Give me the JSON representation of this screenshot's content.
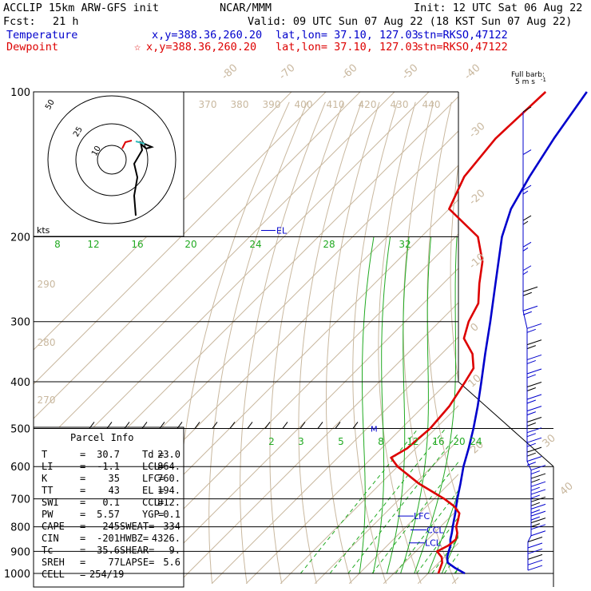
{
  "header": {
    "model": "ACCLIP 15km ARW-GFS init",
    "org": "NCAR/MMM",
    "init": "Init: 12 UTC Sat 06 Aug 22",
    "fcst_label": "Fcst:",
    "fcst_value": "21 h",
    "valid": "Valid: 09 UTC Sun 07 Aug 22 (18 KST Sun 07 Aug 22)"
  },
  "legend": {
    "temperature": {
      "label": "Temperature",
      "xy": "x,y=388.36,260.20",
      "latlon": "lat,lon= 37.10, 127.03",
      "stn": "stn=RKSO,47122",
      "color": "#0000cc"
    },
    "dewpoint": {
      "label": "Dewpoint",
      "marker": "☆",
      "xy": "x,y=388.36,260.20",
      "latlon": "lat,lon= 37.10, 127.03",
      "stn": "stn=RKSO,47122",
      "color": "#dd0000"
    }
  },
  "barb_key": {
    "line1": "Full barb:",
    "line2": "5 m s",
    "unit_sup": "-1"
  },
  "hodograph": {
    "unit": "kts",
    "ring_labels": [
      "10",
      "25",
      "50"
    ]
  },
  "parcel": {
    "title": "Parcel Info",
    "rows": [
      [
        "T",
        "=",
        "30.7",
        "Td",
        "=",
        "23.0"
      ],
      [
        "LI",
        "=",
        "-1.1",
        "LCL",
        "=",
        "864."
      ],
      [
        "K",
        "=",
        "35",
        "LFC",
        "=",
        "760."
      ],
      [
        "TT",
        "=",
        "43",
        "EL",
        "=",
        "194."
      ],
      [
        "SWI",
        "=",
        "0.1",
        "CCL",
        "=",
        "812."
      ],
      [
        "PW",
        "=",
        "5.57",
        "YGP",
        "=",
        "0.1"
      ],
      [
        "CAPE",
        "=",
        "245",
        "SWEAT=",
        "",
        "334"
      ],
      [
        "CIN",
        "=",
        "-201",
        "HWBZ=",
        "",
        "4326."
      ],
      [
        "Tc",
        "=",
        "35.6",
        "SHEAR=",
        "",
        "9."
      ],
      [
        "SREH",
        "=",
        "77",
        "LAPSE=",
        "",
        "5.6"
      ],
      [
        "CELL",
        "=",
        "254/19",
        "",
        "",
        ""
      ]
    ]
  },
  "chart_data": {
    "type": "line",
    "subtype": "skew-T log-p sounding",
    "pressure_levels": [
      100,
      200,
      300,
      400,
      500,
      600,
      700,
      800,
      900,
      1000
    ],
    "isotherm_labels": [
      "-80",
      "-70",
      "-60",
      "-50",
      "-40",
      "-30",
      "-20",
      "-10",
      "0",
      "10",
      "20",
      "30",
      "40"
    ],
    "theta_labels_top": [
      "370",
      "380",
      "390",
      "400",
      "410",
      "420",
      "430",
      "440"
    ],
    "theta_labels_left": [
      "290",
      "280",
      "270"
    ],
    "mixing_ratio_upper": [
      "8",
      "12",
      "16",
      "20",
      "24",
      "28",
      "32"
    ],
    "mixing_ratio_lower": [
      "2",
      "3",
      "5",
      "8",
      "12",
      "16",
      "20",
      "24"
    ],
    "levels_marked": {
      "el": "EL",
      "lfc": "LFC",
      "ccl": "CCL",
      "lcl": "LCL",
      "mark": "M"
    },
    "series": [
      {
        "name": "Temperature",
        "color": "#0000cc",
        "p": [
          1000,
          975,
          950,
          925,
          900,
          875,
          850,
          825,
          800,
          775,
          750,
          725,
          700,
          650,
          600,
          550,
          500,
          450,
          400,
          350,
          300,
          250,
          200,
          175,
          150,
          125,
          100
        ],
        "t": [
          30.7,
          26.4,
          22.6,
          20.8,
          19.6,
          18.4,
          16.6,
          15.2,
          13.6,
          12.0,
          10.4,
          8.6,
          6.8,
          3.2,
          -0.8,
          -4.6,
          -9.0,
          -14.2,
          -20.3,
          -27.3,
          -35.2,
          -44.8,
          -56.5,
          -62.0,
          -66.0,
          -70.0,
          -74.0
        ]
      },
      {
        "name": "Dewpoint",
        "color": "#dd0000",
        "p": [
          1000,
          975,
          950,
          925,
          900,
          875,
          850,
          825,
          800,
          775,
          750,
          725,
          700,
          650,
          600,
          575,
          550,
          500,
          450,
          400,
          375,
          350,
          325,
          300,
          275,
          250,
          225,
          200,
          175,
          150,
          125,
          100
        ],
        "td": [
          23.0,
          22.0,
          21.0,
          19.2,
          16.2,
          17.8,
          18.2,
          16.8,
          14.6,
          13.2,
          11.6,
          8.0,
          3.0,
          -9.0,
          -20.0,
          -24.5,
          -22.5,
          -21.6,
          -22.5,
          -25.0,
          -26.5,
          -31.0,
          -38.0,
          -41.5,
          -44.0,
          -49.5,
          -55.0,
          -63.5,
          -80.0,
          -85.0,
          -87.0,
          -86.0
        ]
      }
    ]
  }
}
